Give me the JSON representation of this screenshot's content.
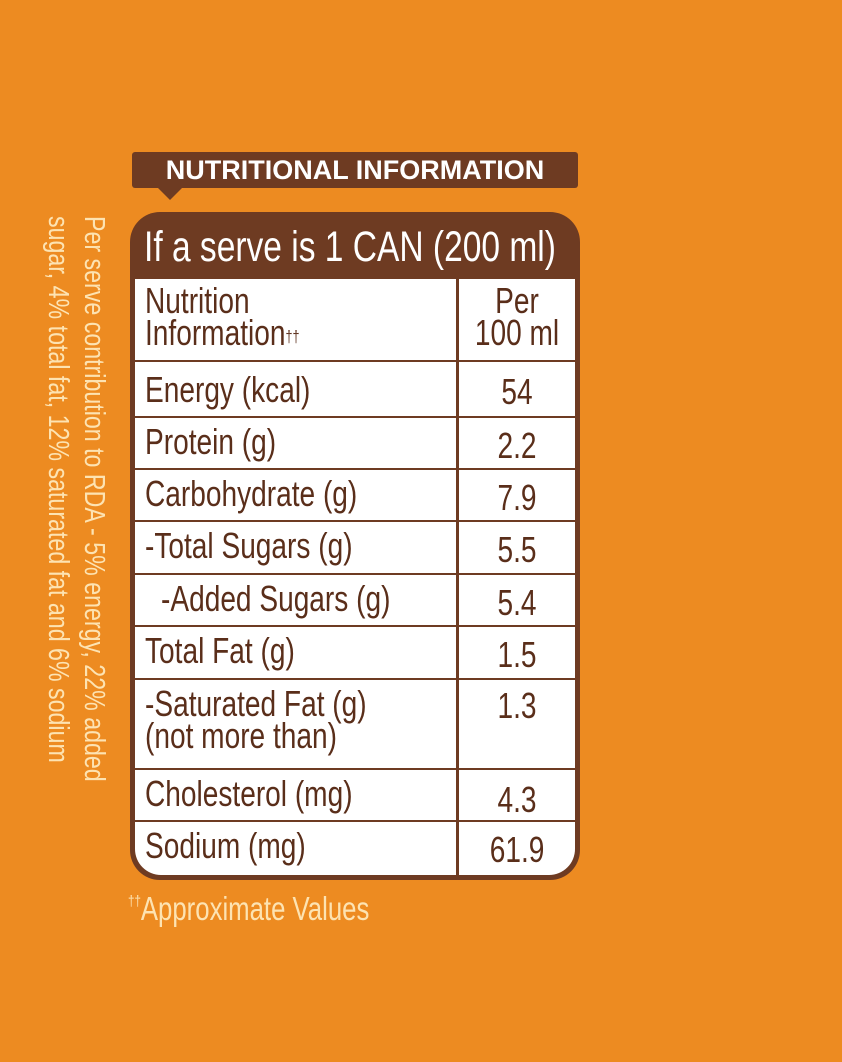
{
  "header": {
    "title": "NUTRITIONAL INFORMATION"
  },
  "serving": {
    "title": "If a serve is 1 CAN (200 ml)"
  },
  "table": {
    "col_label_1": "Nutrition",
    "col_label_2": "Information",
    "col_label_mark": "††",
    "col_value_1": "Per",
    "col_value_2": "100 ml",
    "rows": [
      {
        "label": "Energy (kcal)",
        "value": "54"
      },
      {
        "label": "Protein (g)",
        "value": "2.2"
      },
      {
        "label": "Carbohydrate (g)",
        "value": "7.9"
      },
      {
        "label": "-Total Sugars (g)",
        "value": "5.5"
      },
      {
        "label": "-Added Sugars (g)",
        "value": "5.4"
      },
      {
        "label": "Total Fat (g)",
        "value": "1.5"
      },
      {
        "label": "-Saturated Fat (g)",
        "label2": "(not more than)",
        "value": "1.3"
      },
      {
        "label": "Cholesterol (mg)",
        "value": "4.3"
      },
      {
        "label": "Sodium (mg)",
        "value": "61.9"
      }
    ]
  },
  "side_note": {
    "line1": "Per serve contribution to RDA - 5% energy, 22% added",
    "line2": "sugar, 4% total fat, 12% saturated fat and 6% sodium"
  },
  "footnote": {
    "mark": "††",
    "text": "Approximate Values"
  },
  "colors": {
    "background": "#ed8b21",
    "brown": "#6e3b22",
    "cream": "#fde3b2"
  }
}
